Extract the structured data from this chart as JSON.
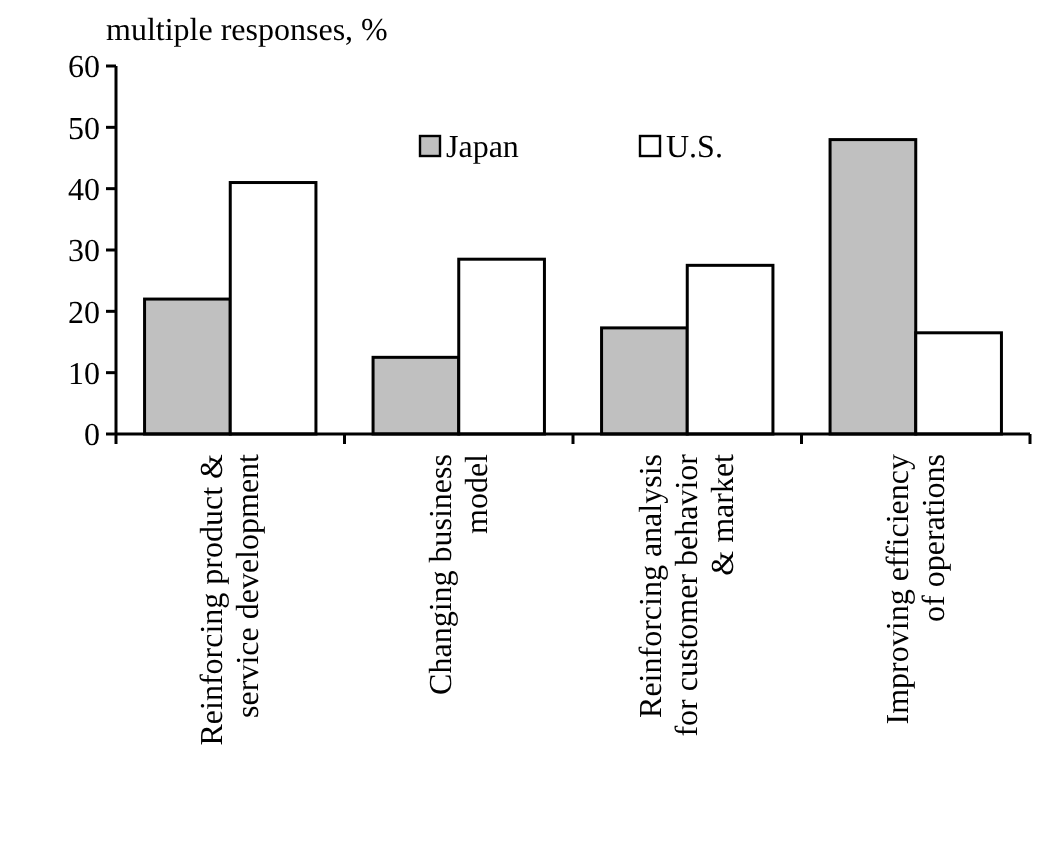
{
  "chart_data": {
    "type": "bar",
    "ylabel": "multiple responses, %",
    "categories": [
      "Reinforcing product & service development",
      "Changing business model",
      "Reinforcing analysis for customer behavior & market",
      "Improving efficiency of operations"
    ],
    "series": [
      {
        "name": "Japan",
        "color": "#c0c0c0",
        "values": [
          22,
          12.5,
          17.3,
          48
        ]
      },
      {
        "name": "U.S.",
        "color": "#ffffff",
        "values": [
          41,
          28.5,
          27.5,
          16.5
        ]
      }
    ],
    "ylim": [
      0,
      60
    ],
    "yticks": [
      0,
      10,
      20,
      30,
      40,
      50,
      60
    ],
    "legend": "top",
    "grid": false
  }
}
